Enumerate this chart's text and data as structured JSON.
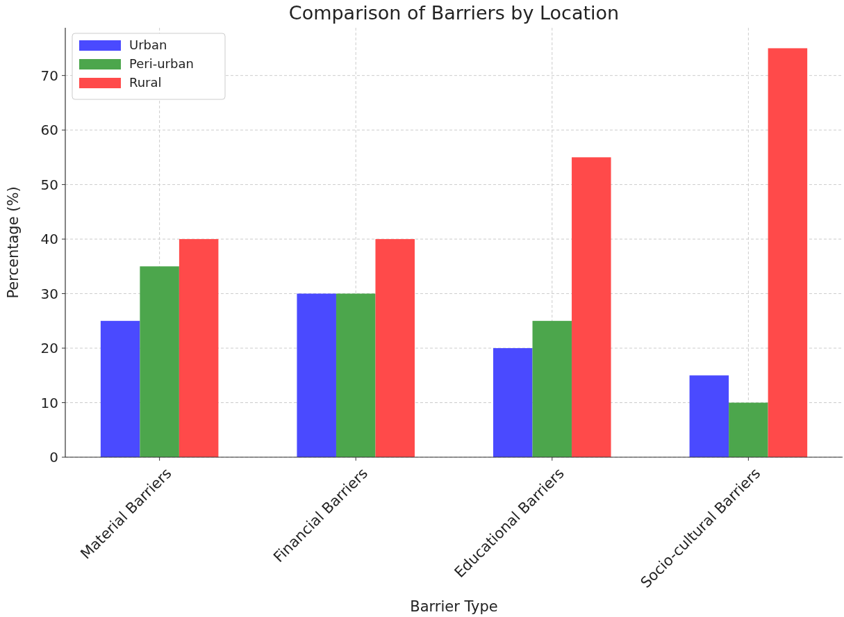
{
  "chart_data": {
    "type": "bar",
    "title": "Comparison of Barriers by Location",
    "xlabel": "Barrier Type",
    "ylabel": "Percentage (%)",
    "categories": [
      "Material Barriers",
      "Financial Barriers",
      "Educational Barriers",
      "Socio-cultural Barriers"
    ],
    "series": [
      {
        "name": "Urban",
        "color": "#4a4aff",
        "values": [
          25,
          30,
          20,
          15
        ]
      },
      {
        "name": "Peri-urban",
        "color": "#4ca64c",
        "values": [
          35,
          30,
          25,
          10
        ]
      },
      {
        "name": "Rural",
        "color": "#ff4a4a",
        "values": [
          40,
          40,
          55,
          75
        ]
      }
    ],
    "ylim": [
      0,
      78.75
    ],
    "yticks": [
      0,
      10,
      20,
      30,
      40,
      50,
      60,
      70
    ],
    "grid": true,
    "legend": "top left"
  }
}
